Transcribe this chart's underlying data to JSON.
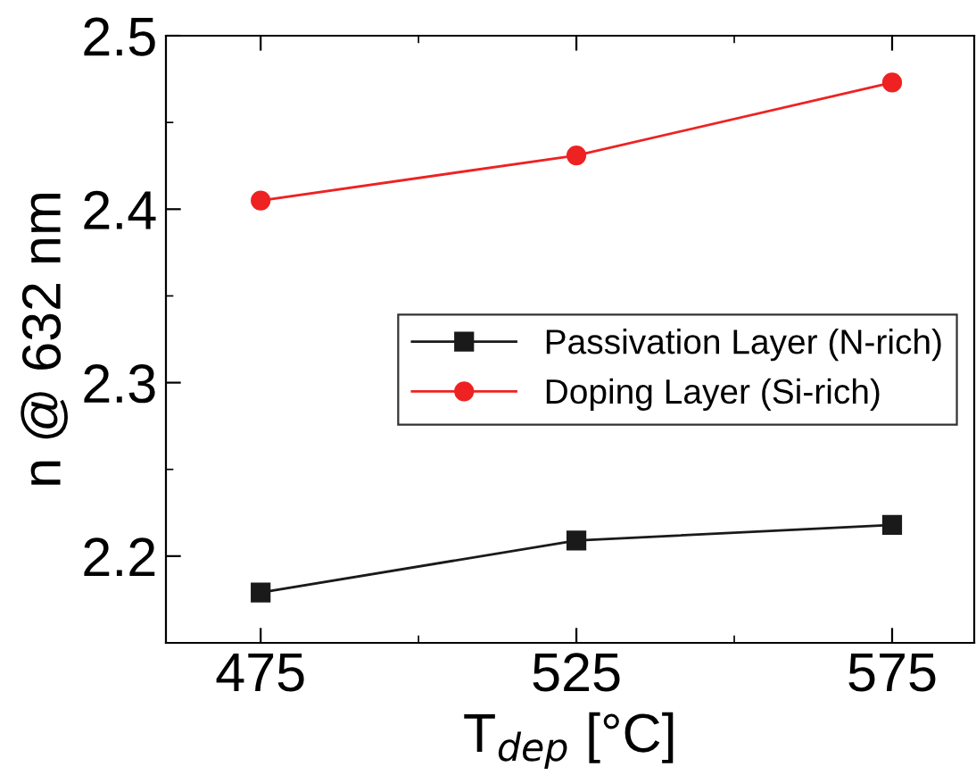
{
  "chart_data": {
    "type": "line",
    "xlabel": "T$_{dep}$ [°C]",
    "ylabel": "n @ 632 nm",
    "x": [
      475,
      525,
      575
    ],
    "series": [
      {
        "name": "Passivation Layer (N-rich)",
        "color": "#1a1a1a",
        "marker": "square",
        "values": [
          2.179,
          2.209,
          2.218
        ]
      },
      {
        "name": "Doping Layer (Si-rich)",
        "color": "#ee2222",
        "marker": "circle",
        "values": [
          2.405,
          2.431,
          2.473
        ]
      }
    ],
    "xlim": [
      460,
      588
    ],
    "xticks": [
      475,
      525,
      575
    ],
    "ylim": [
      2.15,
      2.5
    ],
    "yticks": [
      2.2,
      2.3,
      2.4,
      2.5
    ],
    "grid": false,
    "legend": "right",
    "line_style": "solid"
  }
}
